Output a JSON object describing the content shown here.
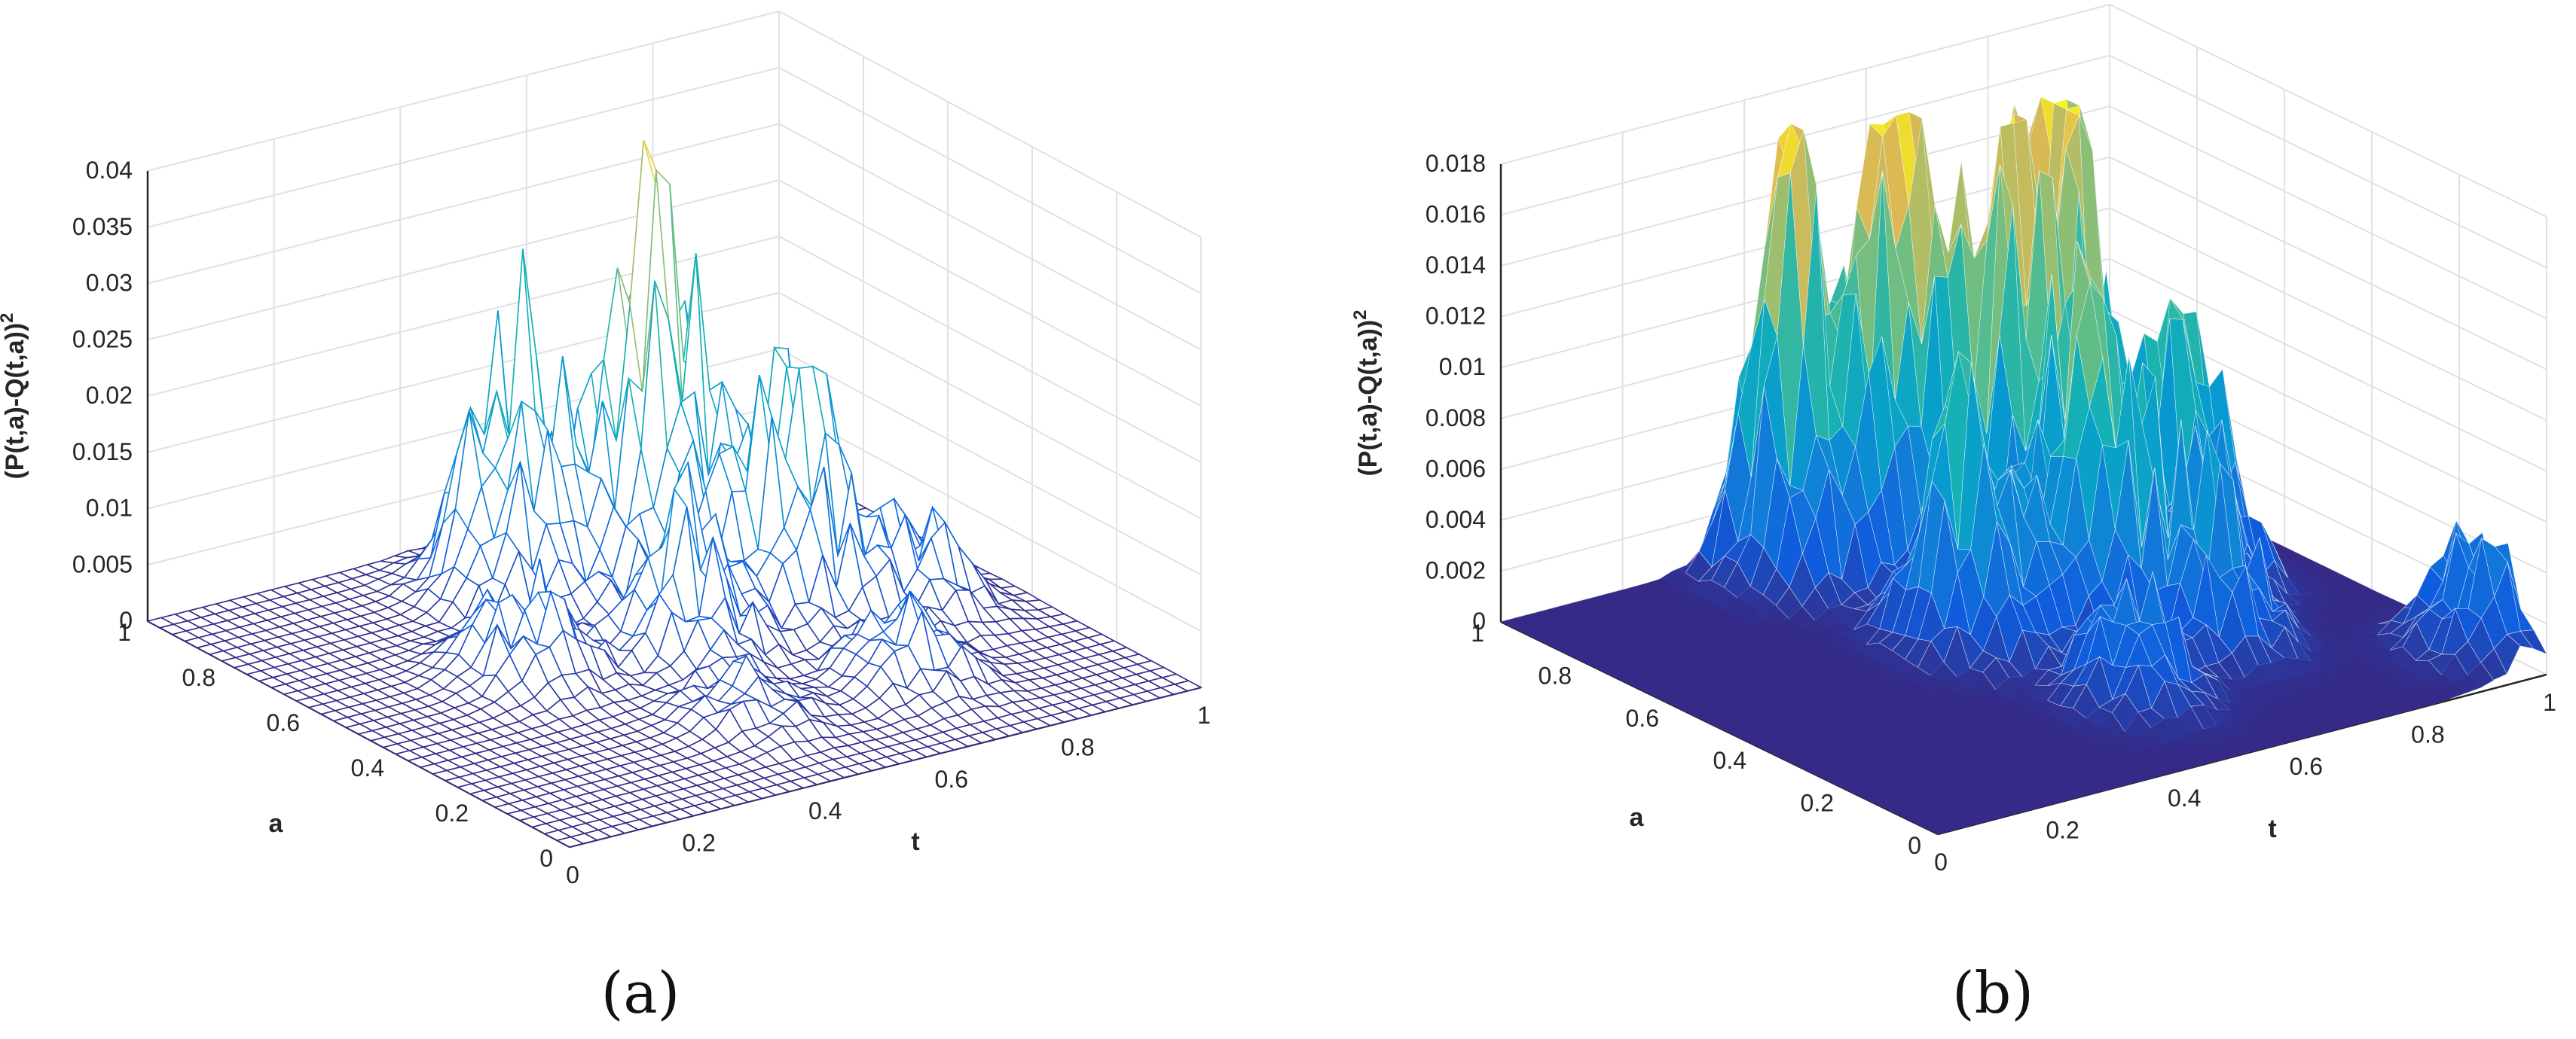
{
  "chart_data": [
    {
      "type": "surface",
      "panel_label": "(a)",
      "render_style": "mesh",
      "colormap": "parula",
      "xlabel": "t",
      "ylabel": "a",
      "zlabel": "(P(t,a)-Q(t,a))",
      "zlabel_exponent": "2",
      "xlim": [
        0,
        1
      ],
      "ylim": [
        0,
        1
      ],
      "zlim": [
        0,
        0.04
      ],
      "xticks": [
        "0",
        "0.2",
        "0.4",
        "0.6",
        "0.8",
        "1"
      ],
      "yticks": [
        "0",
        "0.2",
        "0.4",
        "0.6",
        "0.8",
        "1"
      ],
      "zticks": [
        "0",
        "0.005",
        "0.01",
        "0.015",
        "0.02",
        "0.025",
        "0.03",
        "0.035",
        "0.04"
      ],
      "grid": true,
      "peaks": [
        {
          "t": 0.62,
          "a": 0.72,
          "z": 0.032
        },
        {
          "t": 0.45,
          "a": 0.8,
          "z": 0.023
        },
        {
          "t": 0.72,
          "a": 0.55,
          "z": 0.02
        },
        {
          "t": 0.52,
          "a": 0.5,
          "z": 0.012
        },
        {
          "t": 0.85,
          "a": 0.45,
          "z": 0.007
        },
        {
          "t": 0.3,
          "a": 0.55,
          "z": 0.008
        },
        {
          "t": 0.7,
          "a": 0.25,
          "z": 0.006
        },
        {
          "t": 0.45,
          "a": 0.25,
          "z": 0.004
        }
      ]
    },
    {
      "type": "surface",
      "panel_label": "(b)",
      "render_style": "filled",
      "colormap": "parula",
      "xlabel": "t",
      "ylabel": "a",
      "zlabel": "(P(t,a)-Q(t,a))",
      "zlabel_exponent": "2",
      "xlim": [
        0,
        1
      ],
      "ylim": [
        0,
        1
      ],
      "zlim": [
        0,
        0.018
      ],
      "xticks": [
        "0",
        "0.2",
        "0.4",
        "0.6",
        "0.8",
        "1"
      ],
      "yticks": [
        "0",
        "0.2",
        "0.4",
        "0.6",
        "0.8",
        "1"
      ],
      "zticks": [
        "0",
        "0.002",
        "0.004",
        "0.006",
        "0.008",
        "0.01",
        "0.012",
        "0.014",
        "0.016",
        "0.018"
      ],
      "grid": true,
      "peaks": [
        {
          "t": 0.55,
          "a": 0.85,
          "z": 0.016
        },
        {
          "t": 0.42,
          "a": 0.9,
          "z": 0.0145
        },
        {
          "t": 0.75,
          "a": 0.78,
          "z": 0.016
        },
        {
          "t": 0.65,
          "a": 0.7,
          "z": 0.0145
        },
        {
          "t": 0.62,
          "a": 0.5,
          "z": 0.011
        },
        {
          "t": 0.8,
          "a": 0.55,
          "z": 0.01
        },
        {
          "t": 0.45,
          "a": 0.55,
          "z": 0.009
        },
        {
          "t": 0.7,
          "a": 0.35,
          "z": 0.006
        },
        {
          "t": 0.98,
          "a": 0.12,
          "z": 0.0045
        },
        {
          "t": 0.5,
          "a": 0.25,
          "z": 0.004
        }
      ]
    }
  ]
}
